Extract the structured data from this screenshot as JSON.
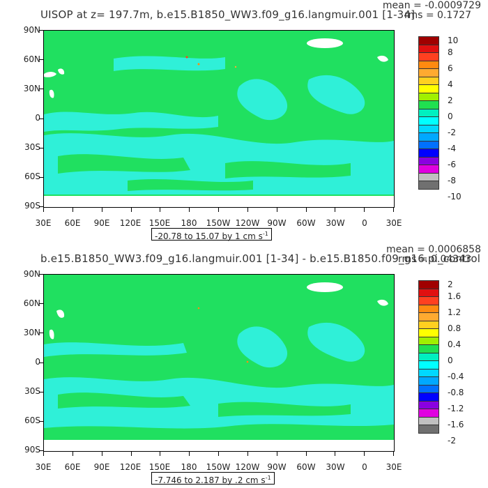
{
  "panels": [
    {
      "title": "UISOP at z=  197.7m, b.e15.B1850_WW3.f09_g16.langmuir.001 [1-34]",
      "mean": "mean = -0.0009729",
      "rms": "rms = 0.1727",
      "range": "-20.78 to 15.07 by 1 cm s",
      "range_sup": "-1",
      "colorbar_labels": [
        "10",
        "8",
        "6",
        "4",
        "2",
        "0",
        "-2",
        "-4",
        "-6",
        "-8",
        "-10"
      ]
    },
    {
      "title": "b.e15.B1850_WW3.f09_g16.langmuir.001 [1-34] - b.e15.B1850.f09_g16.pi_control",
      "mean": "mean = 0.0006858",
      "rms": "rms = 0.04343",
      "range": "-7.746 to 2.187 by .2 cm s",
      "range_sup": "-1",
      "colorbar_labels": [
        "2",
        "1.6",
        "1.2",
        "0.8",
        "0.4",
        "0",
        "-0.4",
        "-0.8",
        "-1.2",
        "-1.6",
        "-2"
      ]
    }
  ],
  "lat_labels": [
    "90N",
    "60N",
    "30N",
    "0",
    "30S",
    "60S",
    "90S"
  ],
  "lon_labels": [
    "30E",
    "60E",
    "90E",
    "120E",
    "150E",
    "180",
    "150W",
    "120W",
    "90W",
    "60W",
    "30W",
    "0",
    "30E"
  ],
  "colorbar_colors": [
    "#a00000",
    "#e01010",
    "#ff4020",
    "#ff8a10",
    "#ffaa30",
    "#ffd020",
    "#ffff00",
    "#a0f000",
    "#20e050",
    "#00f0c0",
    "#00ffff",
    "#00d8ff",
    "#00a8ff",
    "#0070ff",
    "#0000ff",
    "#8a00e0",
    "#e000e0",
    "#c0c0c0",
    "#707070"
  ],
  "colors": {
    "dominant_green": "#20e060",
    "cyan": "#2ff0d8",
    "land": "#ffffff"
  }
}
